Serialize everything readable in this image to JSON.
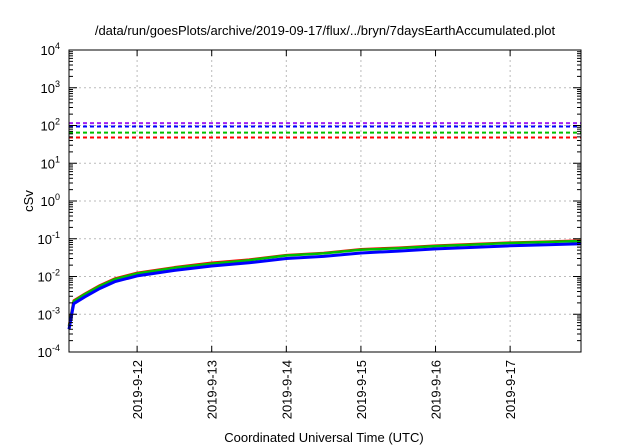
{
  "chart_data": {
    "type": "line",
    "title": "/data/run/goesPlots/archive/2019-09-17/flux/../bryn/7daysEarthAccumulated.plot",
    "xlabel": "Coordinated Universal Time (UTC)",
    "ylabel": "cSv",
    "yscale": "log",
    "ylim": [
      0.0001,
      10000
    ],
    "y_ticks": [
      {
        "value": 0.0001,
        "mant": "10",
        "exp": "-4"
      },
      {
        "value": 0.001,
        "mant": "10",
        "exp": "-3"
      },
      {
        "value": 0.01,
        "mant": "10",
        "exp": "-2"
      },
      {
        "value": 0.1,
        "mant": "10",
        "exp": "-1"
      },
      {
        "value": 1,
        "mant": "10",
        "exp": "0"
      },
      {
        "value": 10,
        "mant": "10",
        "exp": "1"
      },
      {
        "value": 100,
        "mant": "10",
        "exp": "2"
      },
      {
        "value": 1000,
        "mant": "10",
        "exp": "3"
      },
      {
        "value": 10000,
        "mant": "10",
        "exp": "4"
      }
    ],
    "x_unit": "days since 2019-09-11 00:00 UTC",
    "xlim": [
      0.087,
      6.95
    ],
    "x_ticks": [
      {
        "value": 1,
        "label": "2019-9-12"
      },
      {
        "value": 2,
        "label": "2019-9-13"
      },
      {
        "value": 3,
        "label": "2019-9-14"
      },
      {
        "value": 4,
        "label": "2019-9-15"
      },
      {
        "value": 5,
        "label": "2019-9-16"
      },
      {
        "value": 6,
        "label": "2019-9-17"
      }
    ],
    "grid": true,
    "thresholds": [
      {
        "color": "#a020f0",
        "value": 116
      },
      {
        "color": "#0000ff",
        "value": 94
      },
      {
        "color": "#00c000",
        "value": 65
      },
      {
        "color": "#ff0000",
        "value": 48
      }
    ],
    "series": [
      {
        "color": "#ff0000",
        "x": [
          0.087,
          0.15,
          0.3,
          0.5,
          0.7,
          1.0,
          1.5,
          2.0,
          2.5,
          3.0,
          3.5,
          4.0,
          4.5,
          5.0,
          5.5,
          6.0,
          6.5,
          6.95
        ],
        "y": [
          0.0005,
          0.0023,
          0.0035,
          0.0058,
          0.0088,
          0.0125,
          0.0175,
          0.023,
          0.028,
          0.037,
          0.042,
          0.053,
          0.058,
          0.066,
          0.072,
          0.079,
          0.084,
          0.09
        ]
      },
      {
        "color": "#00c000",
        "x": [
          0.087,
          0.15,
          0.3,
          0.5,
          0.7,
          1.0,
          1.5,
          2.0,
          2.5,
          3.0,
          3.5,
          4.0,
          4.5,
          5.0,
          5.5,
          6.0,
          6.5,
          6.95
        ],
        "y": [
          0.00048,
          0.0022,
          0.0034,
          0.0056,
          0.0085,
          0.012,
          0.017,
          0.022,
          0.027,
          0.036,
          0.041,
          0.051,
          0.056,
          0.064,
          0.07,
          0.077,
          0.082,
          0.087
        ]
      },
      {
        "color": "#0000ff",
        "x": [
          0.087,
          0.15,
          0.3,
          0.5,
          0.7,
          1.0,
          1.5,
          2.0,
          2.5,
          3.0,
          3.5,
          4.0,
          4.5,
          5.0,
          5.5,
          6.0,
          6.5,
          6.95
        ],
        "y": [
          0.0004,
          0.0019,
          0.0029,
          0.0048,
          0.0073,
          0.0104,
          0.0145,
          0.019,
          0.023,
          0.03,
          0.034,
          0.042,
          0.047,
          0.054,
          0.059,
          0.065,
          0.069,
          0.074
        ]
      }
    ]
  }
}
